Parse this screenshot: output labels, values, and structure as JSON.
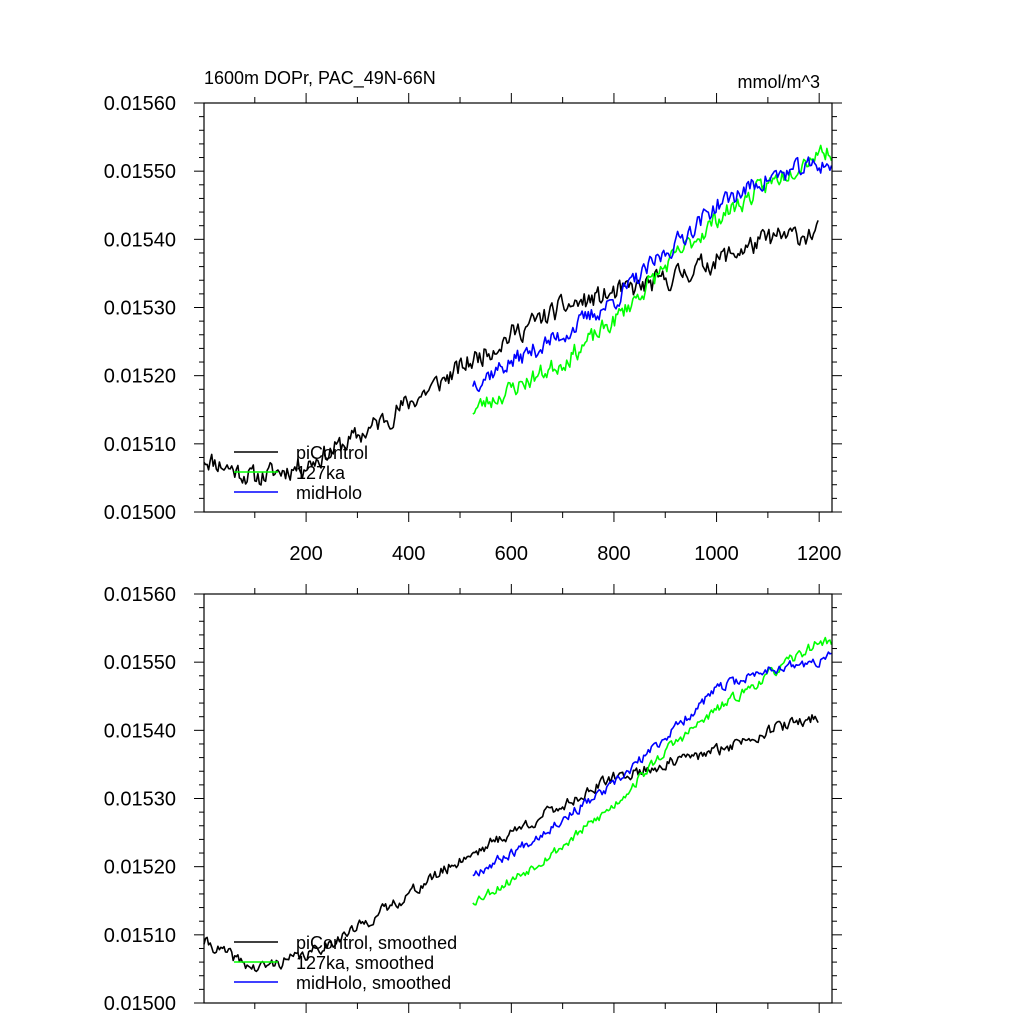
{
  "chart_data": [
    {
      "type": "line",
      "panel": "top",
      "title": "1600m DOPr, PAC_49N-66N",
      "units": "mmol/m^3",
      "xlabel": "",
      "ylabel": "",
      "xlim": [
        1,
        1225
      ],
      "ylim": [
        0.015,
        0.0156
      ],
      "x_ticks": [
        200,
        400,
        600,
        800,
        1000,
        1200
      ],
      "x_tick_labels": [
        "200",
        "400",
        "600",
        "800",
        "1000",
        "1200"
      ],
      "y_ticks": [
        0.015,
        0.0151,
        0.0152,
        0.0153,
        0.0154,
        0.0155,
        0.0156
      ],
      "y_tick_labels": [
        "0.01500",
        "0.01510",
        "0.01520",
        "0.01530",
        "0.01540",
        "0.01550",
        "0.01560"
      ],
      "legend_position": "bottom-left",
      "series": [
        {
          "name": "piControl",
          "color": "#000000",
          "x": [
            1,
            100,
            200,
            300,
            400,
            500,
            600,
            700,
            800,
            900,
            1000,
            1100,
            1200
          ],
          "values": [
            0.01508,
            0.01505,
            0.01507,
            0.01511,
            0.01516,
            0.01521,
            0.01526,
            0.0153,
            0.01532,
            0.01534,
            0.01537,
            0.0154,
            0.01541
          ],
          "noise": 2.5e-05,
          "seed": 11
        },
        {
          "name": "127ka",
          "color": "#00ff00",
          "x": [
            525,
            600,
            700,
            800,
            900,
            1000,
            1100,
            1200,
            1225
          ],
          "values": [
            0.01515,
            0.01518,
            0.01522,
            0.01528,
            0.01536,
            0.01543,
            0.01548,
            0.01553,
            0.01553
          ],
          "noise": 2.2e-05,
          "seed": 23
        },
        {
          "name": "midHolo",
          "color": "#0000ff",
          "x": [
            525,
            600,
            700,
            800,
            900,
            1000,
            1100,
            1200,
            1225
          ],
          "values": [
            0.01519,
            0.01522,
            0.01526,
            0.01531,
            0.01538,
            0.01545,
            0.01549,
            0.01551,
            0.01551
          ],
          "noise": 2.2e-05,
          "seed": 37
        }
      ]
    },
    {
      "type": "line",
      "panel": "bottom",
      "title": "",
      "xlabel": "",
      "ylabel": "",
      "xlim": [
        1,
        1225
      ],
      "ylim": [
        0.015,
        0.0156
      ],
      "x_ticks": [
        200,
        400,
        600,
        800,
        1000,
        1200
      ],
      "x_tick_labels": [],
      "y_ticks": [
        0.015,
        0.0151,
        0.0152,
        0.0153,
        0.0154,
        0.0155,
        0.0156
      ],
      "y_tick_labels": [
        "0.01500",
        "0.01510",
        "0.01520",
        "0.01530",
        "0.01540",
        "0.01550",
        "0.01560"
      ],
      "legend_position": "bottom-left",
      "series": [
        {
          "name": "piControl, smoothed",
          "color": "#000000",
          "x": [
            1,
            100,
            200,
            300,
            400,
            500,
            600,
            700,
            800,
            900,
            1000,
            1100,
            1200
          ],
          "values": [
            0.01509,
            0.01505,
            0.01507,
            0.01511,
            0.01516,
            0.01521,
            0.01525,
            0.01529,
            0.01533,
            0.01535,
            0.01537,
            0.0154,
            0.01542
          ],
          "noise": 1.4e-05,
          "seed": 41
        },
        {
          "name": "127ka, smoothed",
          "color": "#00ff00",
          "x": [
            525,
            600,
            700,
            800,
            900,
            1000,
            1100,
            1200,
            1225
          ],
          "values": [
            0.01515,
            0.01518,
            0.01523,
            0.01529,
            0.01537,
            0.01543,
            0.01548,
            0.01553,
            0.01553
          ],
          "noise": 1.2e-05,
          "seed": 53
        },
        {
          "name": "midHolo, smoothed",
          "color": "#0000ff",
          "x": [
            525,
            600,
            700,
            800,
            900,
            1000,
            1100,
            1200,
            1225
          ],
          "values": [
            0.01519,
            0.01522,
            0.01527,
            0.01532,
            0.01539,
            0.01546,
            0.01549,
            0.0155,
            0.01551
          ],
          "noise": 1.2e-05,
          "seed": 67
        }
      ]
    }
  ]
}
